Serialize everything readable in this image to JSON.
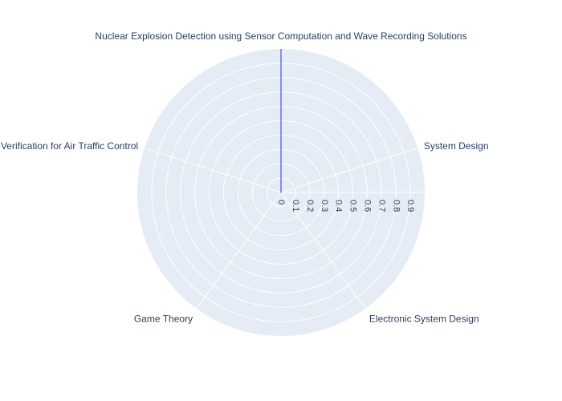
{
  "chart_data": {
    "type": "radar",
    "categories": [
      "Nuclear Explosion Detection using Sensor Computation and Wave Recording Solutions",
      "System Design",
      "Electronic System Design",
      "Game Theory",
      "Formal Verification for Air Traffic Control"
    ],
    "series": [
      {
        "values": [
          1,
          0,
          0,
          0,
          0
        ]
      }
    ],
    "radial_ticks": [
      "0",
      "0.1",
      "0.2",
      "0.3",
      "0.4",
      "0.5",
      "0.6",
      "0.7",
      "0.8",
      "0.9"
    ],
    "radial_range": [
      0,
      1
    ],
    "grid": true,
    "colors": {
      "background": "#e5ecf6",
      "grid": "#ffffff",
      "series": "#636efa",
      "text": "#2a3f5f"
    }
  }
}
